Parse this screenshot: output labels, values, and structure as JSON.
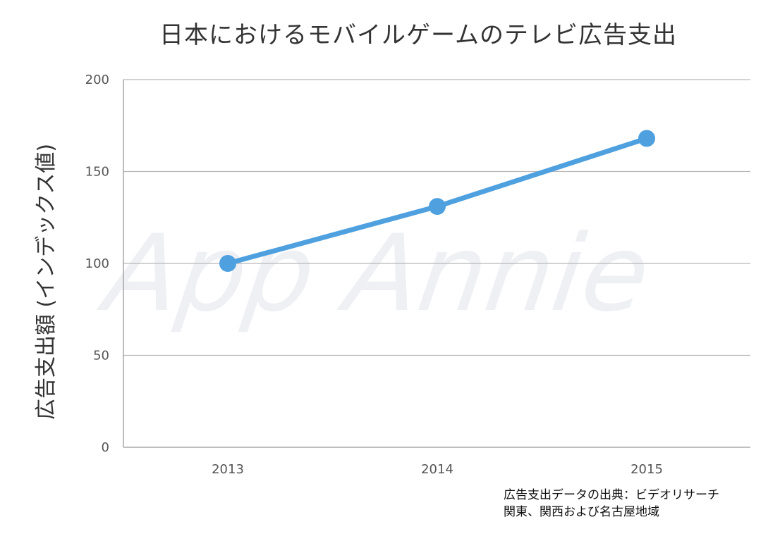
{
  "chart_data": {
    "type": "line",
    "title": "日本におけるモバイルゲームのテレビ広告支出",
    "ylabel": "広告支出額 (インデックス値)",
    "xlabel": "",
    "categories": [
      "2013",
      "2014",
      "2015"
    ],
    "series": [
      {
        "values": [
          100,
          131,
          168
        ],
        "color": "#4ea0df"
      }
    ],
    "ylim": [
      0,
      200
    ],
    "yticks": [
      0,
      50,
      100,
      150,
      200
    ],
    "grid": true,
    "watermark": "App Annie"
  },
  "source_note": {
    "line1": "広告支出データの出典：ビデオリサーチ",
    "line2": "関東、関西および名古屋地域"
  }
}
